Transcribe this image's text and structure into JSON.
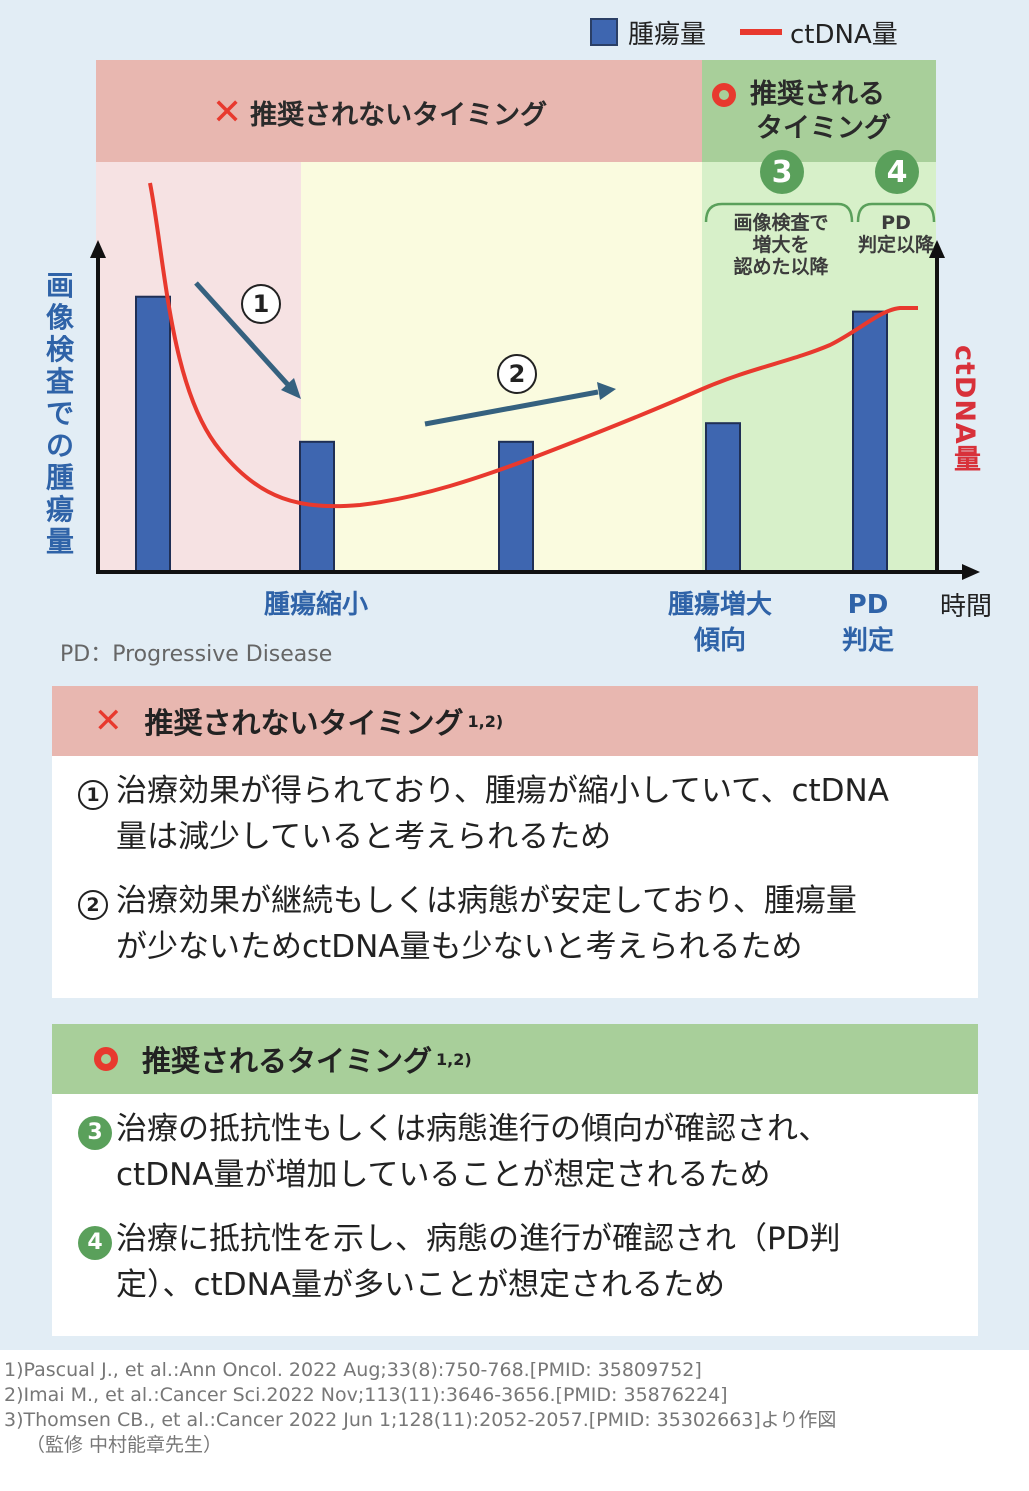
{
  "legend": {
    "bar_label": "腫瘍量",
    "line_label": "ctDNA量"
  },
  "bands": {
    "not_recommended_title": "推奨されないタイミング",
    "recommended_title_1": "推奨される",
    "recommended_title_2": "タイミング",
    "step3": "3",
    "step3_text": [
      "画像検査で",
      "増大を",
      "認めた以降"
    ],
    "step4": "4",
    "step4_text": [
      "PD",
      "判定以降"
    ]
  },
  "chart_data": {
    "type": "bar+line",
    "yaxis_left_label": "画像検査での腫瘍量",
    "yaxis_right_label": "ctDNA量",
    "xaxis_label": "時間",
    "x_labels": [
      {
        "lines": [
          "腫瘍縮小"
        ],
        "at": 1
      },
      {
        "lines": [
          "腫瘍増大",
          "傾向"
        ],
        "at": 3
      },
      {
        "lines": [
          "PD",
          "判定"
        ],
        "at": 4
      }
    ],
    "bars": [
      {
        "name": "腫瘍量",
        "values": [
          0.74,
          0.35,
          0.35,
          0.4,
          0.7
        ]
      }
    ],
    "annotations": [
      "1",
      "2"
    ],
    "colors": {
      "bar": "#3e66b0",
      "line": "#e8392e",
      "red_zone": "#f6e2e3",
      "yellow_zone": "#fafbdf",
      "green_zone": "#d7f0c9"
    },
    "footnote": "PD：Progressive Disease"
  },
  "panel_bad": {
    "title": "推奨されないタイミング",
    "sup": "1,2)",
    "items": [
      {
        "num": "1",
        "text1": "治療効果が得られており、腫瘍が縮小していて、ctDNA",
        "text2": "量は減少していると考えられるため"
      },
      {
        "num": "2",
        "text1": "治療効果が継続もしくは病態が安定しており、腫瘍量",
        "text2": "が少ないためctDNA量も少ないと考えられるため"
      }
    ]
  },
  "panel_good": {
    "title": "推奨されるタイミング",
    "sup": "1,2)",
    "items": [
      {
        "num": "3",
        "text1": "治療の抵抗性もしくは病態進行の傾向が確認され、",
        "text2": "ctDNA量が増加していることが想定されるため"
      },
      {
        "num": "4",
        "text1": "治療に抵抗性を示し、病態の進行が確認され（PD判",
        "text2": "定）、ctDNA量が多いことが想定されるため"
      }
    ]
  },
  "references": [
    "1)Pascual J., et al.:Ann Oncol. 2022 Aug;33(8):750-768.[PMID: 35809752]",
    "2)Imai M., et al.:Cancer Sci.2022 Nov;113(11):3646-3656.[PMID: 35876224]",
    "3)Thomsen CB., et al.:Cancer 2022 Jun 1;128(11):2052-2057.[PMID: 35302663]より作図",
    "（監修 中村能章先生）"
  ]
}
